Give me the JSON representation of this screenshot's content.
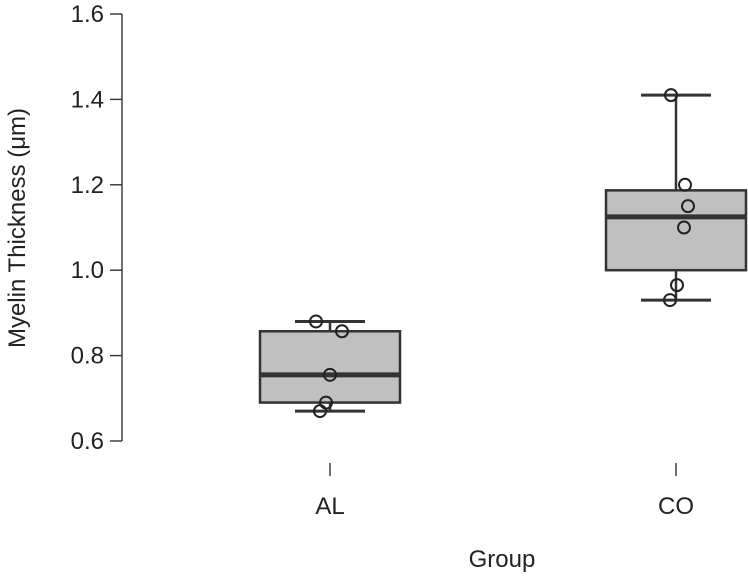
{
  "chart_data": {
    "type": "boxplot",
    "title": "",
    "xlabel": "Group",
    "ylabel": "Myelin Thickness (μm)",
    "ylim": [
      0.6,
      1.6
    ],
    "yticks": [
      0.6,
      0.8,
      1.0,
      1.2,
      1.4,
      1.6
    ],
    "ytick_labels": [
      "0.6",
      "0.8",
      "1.0",
      "1.2",
      "1.4",
      "1.6"
    ],
    "categories": [
      "AL",
      "CO"
    ],
    "box_color": "#c0c0c0",
    "groups": [
      {
        "name": "AL",
        "min": 0.67,
        "q1": 0.69,
        "median": 0.755,
        "q3": 0.857,
        "max": 0.88,
        "points": [
          0.88,
          0.857,
          0.755,
          0.69,
          0.67
        ]
      },
      {
        "name": "CO",
        "min": 0.93,
        "q1": 1.0,
        "median": 1.125,
        "q3": 1.187,
        "max": 1.41,
        "points": [
          1.41,
          1.2,
          1.15,
          1.1,
          0.965,
          0.93
        ]
      }
    ]
  }
}
